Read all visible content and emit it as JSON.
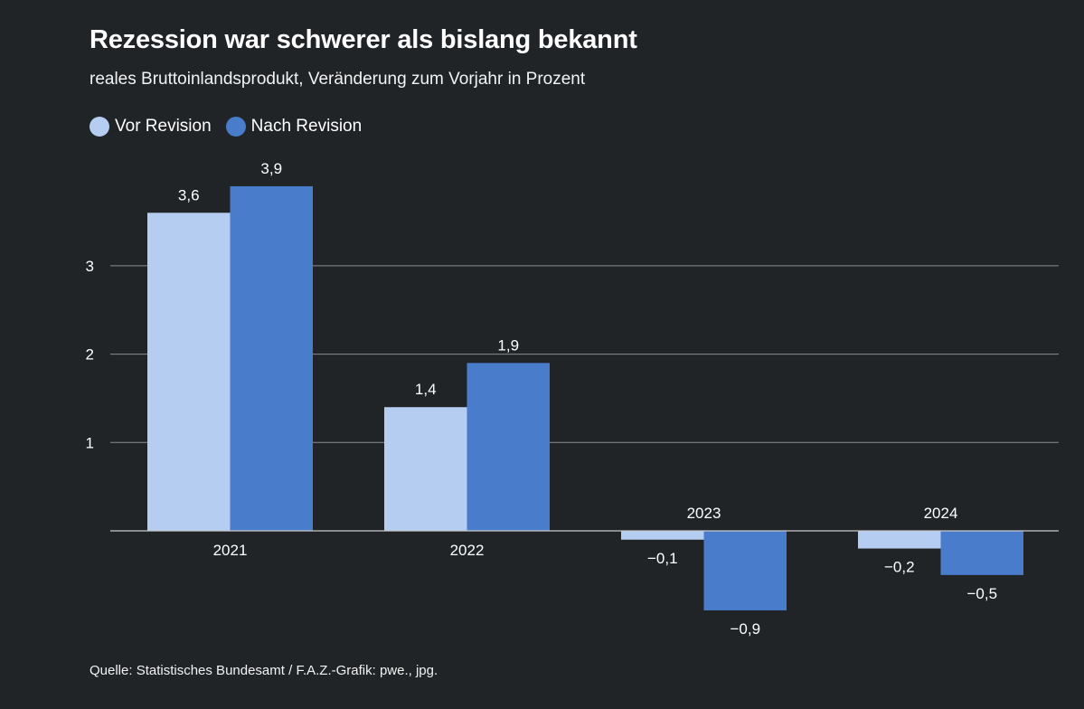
{
  "title": "Rezession war schwerer als bislang bekannt",
  "subtitle": "reales Bruttoinlandsprodukt, Veränderung zum Vorjahr in Prozent",
  "source": "Quelle: Statistisches Bundesamt / F.A.Z.-Grafik: pwe., jpg.",
  "colors": {
    "background": "#212427",
    "vor_revision": "#b4cdf0",
    "nach_revision": "#4a7ccc",
    "grid": "#8a8d90"
  },
  "chart_data": {
    "type": "bar",
    "categories": [
      "2021",
      "2022",
      "2023",
      "2024"
    ],
    "series": [
      {
        "name": "Vor Revision",
        "values": [
          3.6,
          1.4,
          -0.1,
          -0.2
        ],
        "labels": [
          "3,6",
          "1,4",
          "−0,1",
          "−0,2"
        ]
      },
      {
        "name": "Nach Revision",
        "values": [
          3.9,
          1.9,
          -0.9,
          -0.5
        ],
        "labels": [
          "3,9",
          "1,9",
          "−0,9",
          "−0,5"
        ]
      }
    ],
    "yticks": [
      1,
      2,
      3
    ],
    "ytick_labels": [
      "1",
      "2",
      "3"
    ],
    "grid": true,
    "legend": "top-left"
  }
}
